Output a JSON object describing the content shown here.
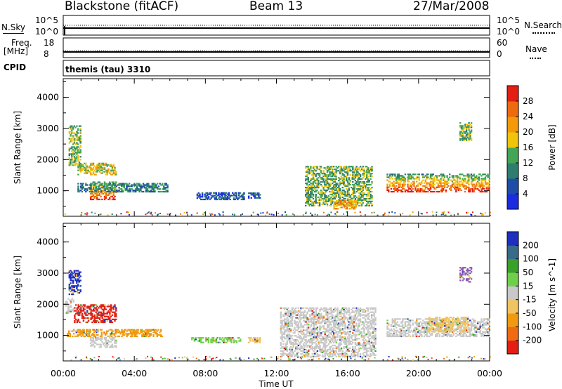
{
  "header": {
    "station": "Blackstone (fitACF)",
    "beam": "Beam 13",
    "date": "27/Mar/2008"
  },
  "panels": {
    "nsky_label": "N.Sky",
    "nsky_ticks": [
      "10^5",
      "10^0"
    ],
    "nsearch_label": "N.Search",
    "nsearch_ticks": [
      "10^5",
      "10^0"
    ],
    "freq_label": "Freq.",
    "freq_unit": "[MHz]",
    "freq_ticks": [
      "18",
      "8"
    ],
    "nave_label": "Nave",
    "nave_ticks": [
      "60",
      "0"
    ],
    "cpid_label": "CPID",
    "cpid_value": "themis (tau) 3310"
  },
  "chart_data": [
    {
      "type": "heatmap",
      "name": "power",
      "ylabel": "Slant Range [km]",
      "yticks": [
        1000,
        2000,
        3000,
        4000
      ],
      "ylim": [
        180,
        4600
      ],
      "xlim_hours": [
        0,
        24
      ],
      "colorbar_label": "Power [dB]",
      "colorbar_ticks": [
        "4",
        "8",
        "12",
        "16",
        "20",
        "24",
        "28"
      ],
      "colorbar_colors": [
        "#1b2be0",
        "#1e4da8",
        "#2f7d6e",
        "#43a656",
        "#f0c40a",
        "#f49a08",
        "#ee6a10",
        "#e41e12"
      ],
      "regions": [
        {
          "t": [
            0.3,
            1.0
          ],
          "r": [
            1800,
            3100
          ],
          "level": 3
        },
        {
          "t": [
            0.8,
            3.0
          ],
          "r": [
            1500,
            1900
          ],
          "level": 4
        },
        {
          "t": [
            1.5,
            3.0
          ],
          "r": [
            700,
            1300
          ],
          "level": 6
        },
        {
          "t": [
            0.8,
            5.9
          ],
          "r": [
            950,
            1250
          ],
          "level": 2
        },
        {
          "t": [
            7.5,
            10.2
          ],
          "r": [
            700,
            950
          ],
          "level": 1
        },
        {
          "t": [
            10.4,
            11.1
          ],
          "r": [
            750,
            950
          ],
          "level": 1
        },
        {
          "t": [
            13.6,
            17.4
          ],
          "r": [
            500,
            1800
          ],
          "level": 3
        },
        {
          "t": [
            15.2,
            16.5
          ],
          "r": [
            400,
            700
          ],
          "level": 5
        },
        {
          "t": [
            18.2,
            24.0
          ],
          "r": [
            950,
            1550
          ],
          "level": 7
        },
        {
          "t": [
            22.3,
            23.0
          ],
          "r": [
            2600,
            3200
          ],
          "level": 3
        }
      ]
    },
    {
      "type": "heatmap",
      "name": "velocity",
      "ylabel": "Slant Range [km]",
      "yticks": [
        1000,
        2000,
        3000,
        4000
      ],
      "ylim": [
        180,
        4600
      ],
      "xlabel": "Time UT",
      "xticks": [
        "00:00",
        "04:00",
        "08:00",
        "12:00",
        "16:00",
        "20:00",
        "00:00"
      ],
      "xlim_hours": [
        0,
        24
      ],
      "colorbar_label": "Velocity [m s^-1]",
      "colorbar_ticks": [
        "200",
        "100",
        "50",
        "15",
        "-15",
        "-50",
        "-100",
        "-200"
      ],
      "colorbar_colors": [
        "#1e2fbf",
        "#3a6a8a",
        "#39a02a",
        "#6ed04a",
        "#c8c8c8",
        "#f0c460",
        "#f09a10",
        "#ef6a12",
        "#e41e12"
      ],
      "regions": [
        {
          "t": [
            0.3,
            1.0
          ],
          "r": [
            2300,
            3100
          ],
          "color": "#1e2fbf"
        },
        {
          "t": [
            0.1,
            0.6
          ],
          "r": [
            1700,
            2200
          ],
          "color": "#c8c8c8"
        },
        {
          "t": [
            0.6,
            3.0
          ],
          "r": [
            1400,
            2000
          ],
          "color": "#e41e12"
        },
        {
          "t": [
            0.2,
            5.6
          ],
          "r": [
            950,
            1200
          ],
          "color": "#f09a10"
        },
        {
          "t": [
            1.5,
            3.0
          ],
          "r": [
            600,
            950
          ],
          "color": "#c8c8c8"
        },
        {
          "t": [
            7.2,
            10.0
          ],
          "r": [
            750,
            950
          ],
          "color": "#6ed04a"
        },
        {
          "t": [
            10.4,
            11.1
          ],
          "r": [
            750,
            950
          ],
          "color": "#f0c460"
        },
        {
          "t": [
            12.2,
            17.6
          ],
          "r": [
            300,
            1900
          ],
          "color": "#c8c8c8"
        },
        {
          "t": [
            18.2,
            24.0
          ],
          "r": [
            950,
            1550
          ],
          "color": "#c8c8c8"
        },
        {
          "t": [
            20.5,
            22.8
          ],
          "r": [
            1100,
            1600
          ],
          "color": "#f0c460"
        },
        {
          "t": [
            22.3,
            23.0
          ],
          "r": [
            2700,
            3200
          ],
          "color": "#8a5ab0"
        }
      ]
    }
  ]
}
